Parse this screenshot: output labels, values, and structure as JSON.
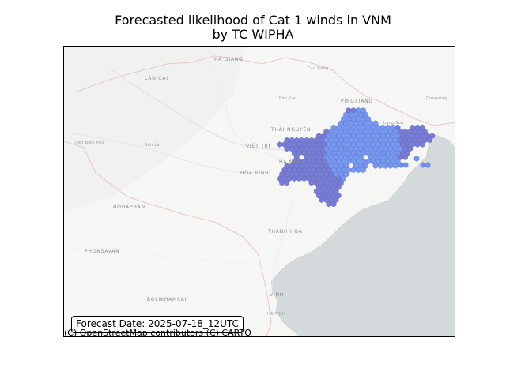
{
  "title": {
    "line1": "Forecasted likelihood of Cat 1 winds in VNM",
    "line2": "by TC WIPHA"
  },
  "forecast": {
    "label": "Forecast Date: 2025-07-18_12UTC"
  },
  "attribution": "(C) OpenStreetMap contributors (C) CARTO",
  "basemap": {
    "place_labels": [
      "HÀ GIANG",
      "LÀO CAI",
      "Cao Bằng",
      "Bắc Kạn",
      "PINGXIANG",
      "THÁI NGUYÊN",
      "VIỆT TRÌ",
      "Điện Biên Phủ",
      "Sơn La",
      "HÒA BÌNH",
      "HÀ NỘI",
      "HOUAPHAN",
      "PHONSAVAN",
      "THANH HÓA",
      "VINH",
      "BOLIKHAMSAI",
      "HÀ TĨNH",
      "Lạng Sơn",
      "Dongxing"
    ]
  },
  "colors": {
    "land": "#f6f6f5",
    "sea": "#d4dadc",
    "hex_low": "#6a6fcf",
    "hex_high": "#6f92ee",
    "border": "#e9c7c7"
  }
}
